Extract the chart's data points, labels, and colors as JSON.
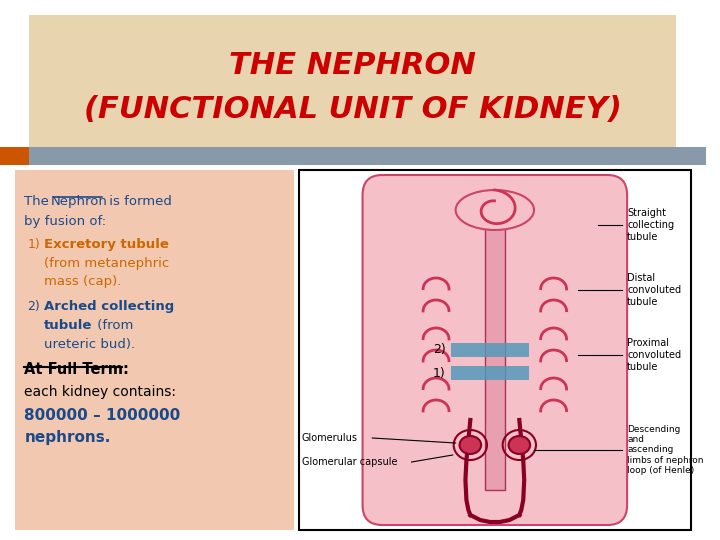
{
  "title_line1": "THE NEPHRON",
  "title_line2": "(FUNCTIONAL UNIT OF KIDNEY)",
  "title_color": "#cc0000",
  "title_fontsize": 22,
  "title_bg_color": "#e8d5b0",
  "header_stripe_color": "#8899aa",
  "left_bg_color": "#f2c9b0",
  "slide_bg_color": "#ffffff",
  "text_intro_normal": "The ",
  "text_intro_nephron": "Nephron",
  "text_intro_rest": " is formed\nby fusion of:",
  "intro_color": "#1a4a8a",
  "item1_label": "1)",
  "item1_bold": "Excretory tubule",
  "item1_rest": "\n(from metanephric\nmass (cap).",
  "item1_color": "#cc6600",
  "item2_label": "2)",
  "item2_bold": "Arched collecting\ntubule",
  "item2_rest": " (from\nureteric bud).",
  "item2_color": "#1a4a8a",
  "fullterm_label": "At Full Term:",
  "fullterm_color": "#000000",
  "kidney_text": "each kidney contains:",
  "kidney_numbers": "800000 – 1000000\nnephrons.",
  "kidney_numbers_color": "#1a4a8a",
  "arrow1_color": "#5599bb",
  "arrow2_color": "#5599bb",
  "label2_text": "2)",
  "label1_text": "1)",
  "diagram_labels": [
    "Straight\ncollecting\ntubule",
    "Distal\nconvoluted\ntubule",
    "Proximal\nconvoluted\ntubule",
    "Descending\nand\nascending\nlimbs of nephron\nloop (of Henle)",
    "Glomerulus",
    "Glomerular capsule"
  ],
  "bottom_stripe_color": "#8899aa",
  "orange_rect_color": "#cc5500"
}
